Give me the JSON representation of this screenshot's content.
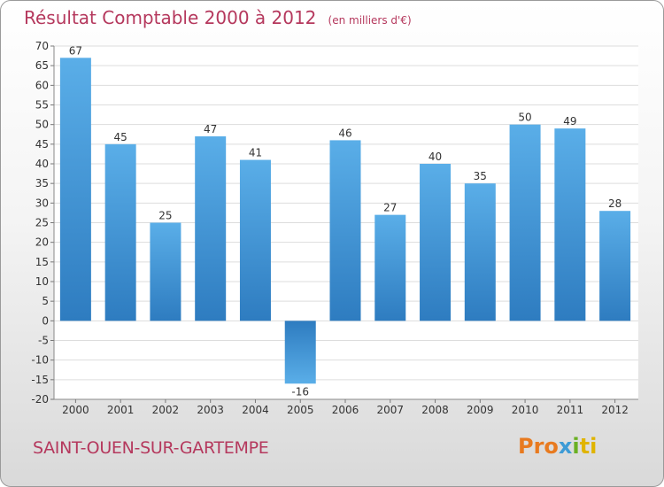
{
  "header": {
    "title": "Résultat Comptable 2000 à 2012",
    "subtitle": "(en milliers d'€)"
  },
  "footer": {
    "commune": "SAINT-OUEN-SUR-GARTEMPE",
    "logo": {
      "part1": "Pro",
      "part2": "x",
      "part3": "i",
      "part4": "ti"
    }
  },
  "colors": {
    "bar_light": "#5aaee8",
    "bar_dark": "#2e7cc0",
    "title": "#b5385d"
  },
  "chart_data": {
    "type": "bar",
    "title": "Résultat Comptable 2000 à 2012",
    "subtitle": "(en milliers d'€)",
    "xlabel": "",
    "ylabel": "",
    "categories": [
      "2000",
      "2001",
      "2002",
      "2003",
      "2004",
      "2005",
      "2006",
      "2007",
      "2008",
      "2009",
      "2010",
      "2011",
      "2012"
    ],
    "values": [
      67,
      45,
      25,
      47,
      41,
      -16,
      46,
      27,
      40,
      35,
      50,
      49,
      28
    ],
    "ylim": [
      -20,
      70
    ],
    "yticks": [
      70,
      65,
      60,
      55,
      50,
      45,
      40,
      35,
      30,
      25,
      20,
      15,
      10,
      5,
      0,
      -5,
      -10,
      -15,
      -20
    ],
    "grid": true,
    "legend": "none"
  }
}
